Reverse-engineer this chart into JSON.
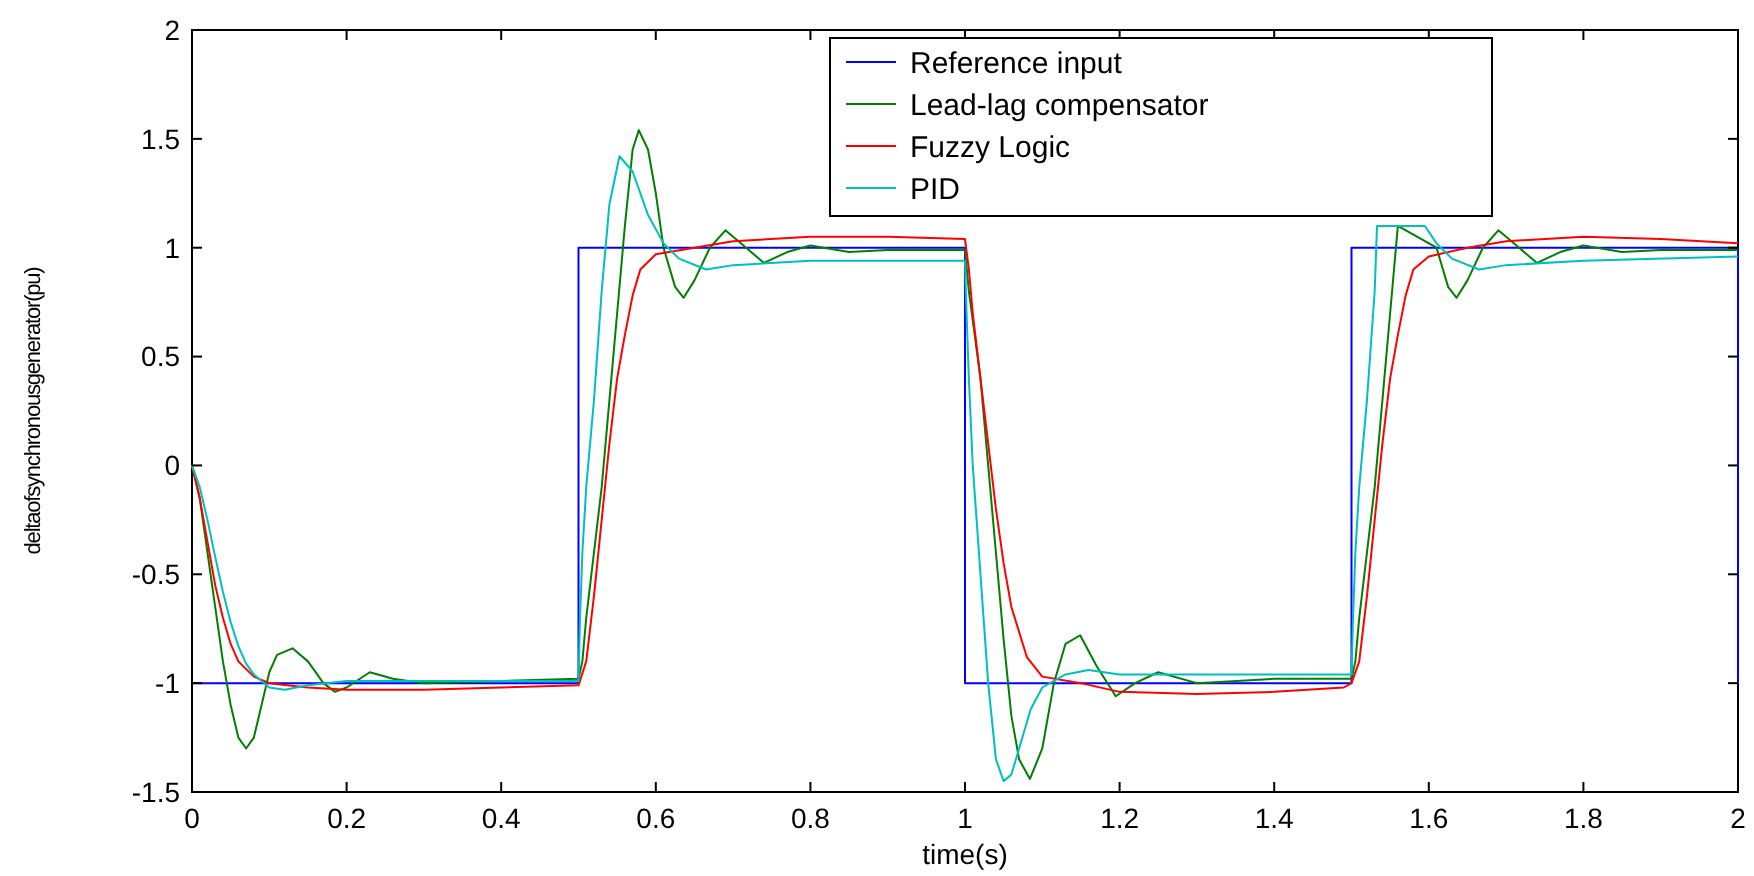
{
  "chart_data": {
    "type": "line",
    "xlabel": "time(s)",
    "ylabel": "deltaofsynchronousgenerator(pu)",
    "xlim": [
      0,
      2
    ],
    "ylim": [
      -1.5,
      2
    ],
    "xticks": [
      0,
      0.2,
      0.4,
      0.6,
      0.8,
      1,
      1.2,
      1.4,
      1.6,
      1.8,
      2
    ],
    "yticks": [
      -1.5,
      -1,
      -0.5,
      0,
      0.5,
      1,
      1.5,
      2
    ],
    "grid": false,
    "legend": "top right",
    "line_style": "solid",
    "marker": "none",
    "series": [
      {
        "name": "Reference input",
        "color": "#0000ff",
        "x": [
          0,
          0.5,
          0.5,
          1,
          1,
          1.5,
          1.5,
          2,
          2
        ],
        "values": [
          -1,
          -1,
          1,
          1,
          -1,
          -1,
          1,
          1,
          -1
        ]
      },
      {
        "name": "Lead-lag compensator",
        "color": "#008000",
        "x": [
          0,
          0.01,
          0.02,
          0.03,
          0.04,
          0.05,
          0.06,
          0.07,
          0.08,
          0.09,
          0.1,
          0.11,
          0.13,
          0.15,
          0.17,
          0.185,
          0.2,
          0.23,
          0.26,
          0.3,
          0.4,
          0.5,
          0.505,
          0.51,
          0.52,
          0.53,
          0.54,
          0.55,
          0.56,
          0.57,
          0.578,
          0.59,
          0.6,
          0.61,
          0.625,
          0.636,
          0.65,
          0.67,
          0.69,
          0.71,
          0.74,
          0.77,
          0.8,
          0.85,
          0.9,
          1,
          1.005,
          1.02,
          1.03,
          1.04,
          1.05,
          1.06,
          1.07,
          1.084,
          1.1,
          1.115,
          1.13,
          1.149,
          1.17,
          1.195,
          1.22,
          1.25,
          1.3,
          1.4,
          1.5,
          1.505,
          1.51,
          1.52,
          1.53,
          1.54,
          1.55,
          1.56,
          1.61,
          1.625,
          1.636,
          1.65,
          1.67,
          1.69,
          1.71,
          1.74,
          1.77,
          1.8,
          1.85,
          1.9,
          2
        ],
        "values": [
          0,
          -0.15,
          -0.4,
          -0.65,
          -0.9,
          -1.1,
          -1.25,
          -1.3,
          -1.25,
          -1.1,
          -0.95,
          -0.87,
          -0.84,
          -0.9,
          -1,
          -1.04,
          -1.02,
          -0.95,
          -0.98,
          -1,
          -0.99,
          -0.98,
          -0.9,
          -0.7,
          -0.4,
          -0.1,
          0.3,
          0.7,
          1.1,
          1.45,
          1.54,
          1.45,
          1.25,
          1,
          0.82,
          0.77,
          0.85,
          1,
          1.08,
          1.02,
          0.93,
          0.98,
          1.01,
          0.98,
          0.99,
          0.99,
          0.8,
          0.4,
          0,
          -0.4,
          -0.8,
          -1.15,
          -1.35,
          -1.44,
          -1.3,
          -1,
          -0.82,
          -0.78,
          -0.92,
          -1.06,
          -1,
          -0.95,
          -1,
          -0.98,
          -0.98,
          -0.9,
          -0.7,
          -0.4,
          -0.1,
          0.3,
          0.7,
          1.1,
          1,
          0.82,
          0.77,
          0.85,
          1,
          1.08,
          1.02,
          0.93,
          0.98,
          1.01,
          0.98,
          0.99,
          0.99
        ]
      },
      {
        "name": "Fuzzy Logic",
        "color": "#ff0000",
        "x": [
          0,
          0.01,
          0.02,
          0.03,
          0.04,
          0.05,
          0.06,
          0.08,
          0.1,
          0.15,
          0.2,
          0.3,
          0.4,
          0.5,
          0.51,
          0.52,
          0.53,
          0.54,
          0.55,
          0.56,
          0.57,
          0.58,
          0.6,
          0.65,
          0.7,
          0.8,
          0.9,
          1,
          1.005,
          1.01,
          1.02,
          1.03,
          1.04,
          1.05,
          1.06,
          1.08,
          1.1,
          1.15,
          1.2,
          1.3,
          1.4,
          1.49,
          1.5,
          1.51,
          1.52,
          1.53,
          1.54,
          1.55,
          1.56,
          1.57,
          1.58,
          1.6,
          1.65,
          1.7,
          1.8,
          1.9,
          2
        ],
        "values": [
          0,
          -0.15,
          -0.35,
          -0.55,
          -0.7,
          -0.82,
          -0.9,
          -0.97,
          -1,
          -1.02,
          -1.03,
          -1.03,
          -1.02,
          -1.01,
          -0.9,
          -0.6,
          -0.25,
          0.1,
          0.4,
          0.6,
          0.78,
          0.9,
          0.97,
          1,
          1.03,
          1.05,
          1.05,
          1.04,
          0.9,
          0.7,
          0.4,
          0.1,
          -0.2,
          -0.45,
          -0.65,
          -0.88,
          -0.97,
          -1,
          -1.04,
          -1.05,
          -1.04,
          -1.02,
          -1,
          -0.9,
          -0.6,
          -0.25,
          0.1,
          0.4,
          0.6,
          0.78,
          0.9,
          0.96,
          1,
          1.03,
          1.05,
          1.04,
          1.02
        ]
      },
      {
        "name": "PID",
        "color": "#00bfbf",
        "x": [
          0,
          0.01,
          0.02,
          0.03,
          0.04,
          0.05,
          0.06,
          0.07,
          0.08,
          0.1,
          0.12,
          0.15,
          0.2,
          0.3,
          0.5,
          0.502,
          0.505,
          0.51,
          0.52,
          0.53,
          0.54,
          0.553,
          0.57,
          0.59,
          0.61,
          0.63,
          0.665,
          0.7,
          0.8,
          1,
          1.002,
          1.005,
          1.01,
          1.02,
          1.03,
          1.04,
          1.05,
          1.06,
          1.07,
          1.085,
          1.1,
          1.13,
          1.16,
          1.2,
          1.5,
          1.502,
          1.505,
          1.51,
          1.52,
          1.53,
          1.533,
          1.595,
          1.61,
          1.63,
          1.665,
          1.7,
          1.8,
          2
        ],
        "values": [
          0,
          -0.1,
          -0.25,
          -0.42,
          -0.58,
          -0.72,
          -0.83,
          -0.91,
          -0.96,
          -1.02,
          -1.03,
          -1.01,
          -0.99,
          -0.99,
          -0.99,
          -0.7,
          -0.4,
          -0.1,
          0.3,
          0.8,
          1.2,
          1.42,
          1.35,
          1.15,
          1.02,
          0.95,
          0.9,
          0.92,
          0.94,
          0.94,
          0.7,
          0.4,
          0,
          -0.5,
          -1,
          -1.35,
          -1.45,
          -1.42,
          -1.3,
          -1.12,
          -1.02,
          -0.96,
          -0.94,
          -0.96,
          -0.96,
          -0.7,
          -0.4,
          -0.1,
          0.3,
          0.8,
          1.1,
          1.1,
          1.02,
          0.95,
          0.9,
          0.92,
          0.94,
          0.96
        ]
      }
    ]
  }
}
